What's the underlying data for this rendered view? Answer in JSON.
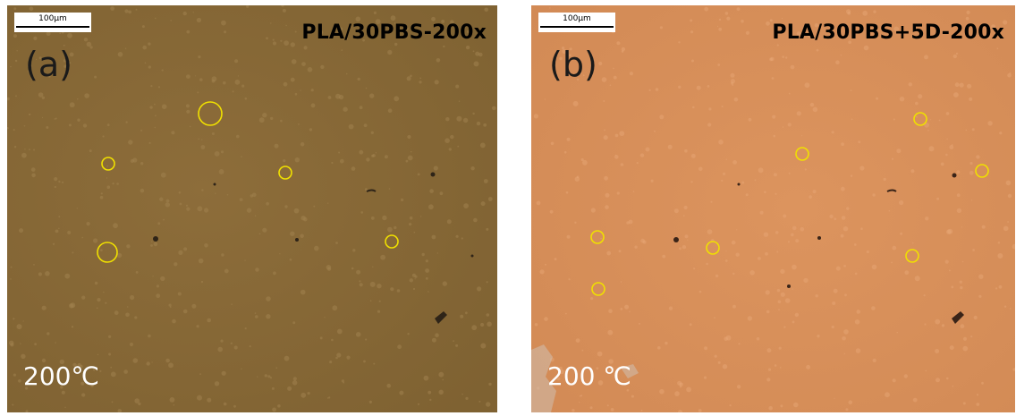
{
  "panels": [
    {
      "letter": "(a)",
      "sample": "PLA/30PBS-200x",
      "scale": "100μm",
      "temperature": "200℃",
      "background_color": "#8a6a37",
      "highlight_color": "#f0e000"
    },
    {
      "letter": "(b)",
      "sample": "PLA/30PBS+5D-200x",
      "scale": "100μm",
      "temperature": "200 ℃",
      "background_color": "#d9905b",
      "highlight_color": "#f0e000"
    }
  ]
}
